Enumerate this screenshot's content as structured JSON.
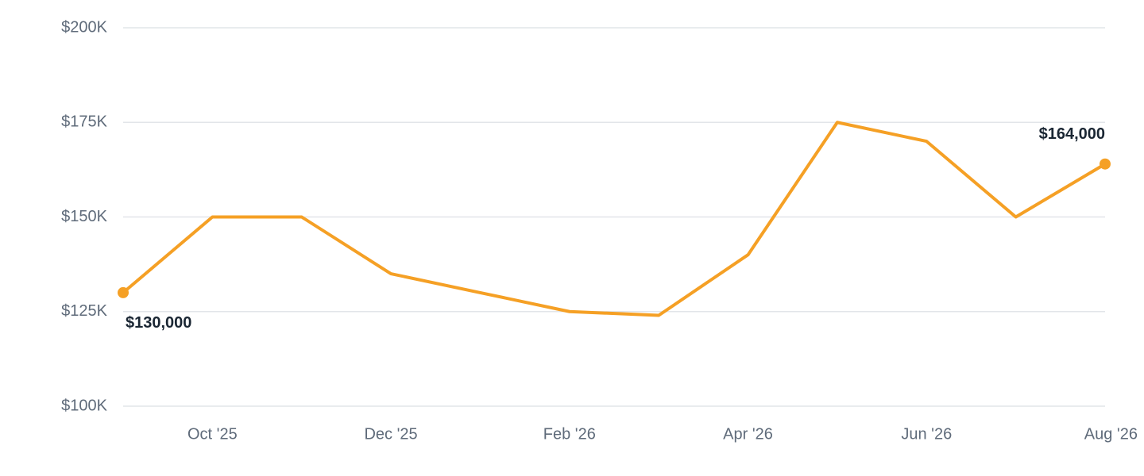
{
  "chart_data": {
    "type": "line",
    "categories": [
      null,
      "Oct '25",
      null,
      "Dec '25",
      null,
      "Feb '26",
      null,
      "Apr '26",
      null,
      "Jun '26",
      null,
      "Aug '26"
    ],
    "values": [
      130000,
      150000,
      150000,
      135000,
      130000,
      125000,
      124000,
      140000,
      175000,
      170000,
      150000,
      164000
    ],
    "value_labels": [
      "$130,000",
      null,
      null,
      null,
      null,
      null,
      null,
      null,
      null,
      null,
      null,
      "$164,000"
    ],
    "color": "#f5a025",
    "ylim": [
      100000,
      200000
    ],
    "yticks": [
      {
        "value": 100000,
        "label": "$100K"
      },
      {
        "value": 125000,
        "label": "$125K"
      },
      {
        "value": 150000,
        "label": "$150K"
      },
      {
        "value": 175000,
        "label": "$175K"
      },
      {
        "value": 200000,
        "label": "$200K"
      }
    ],
    "grid": true
  }
}
